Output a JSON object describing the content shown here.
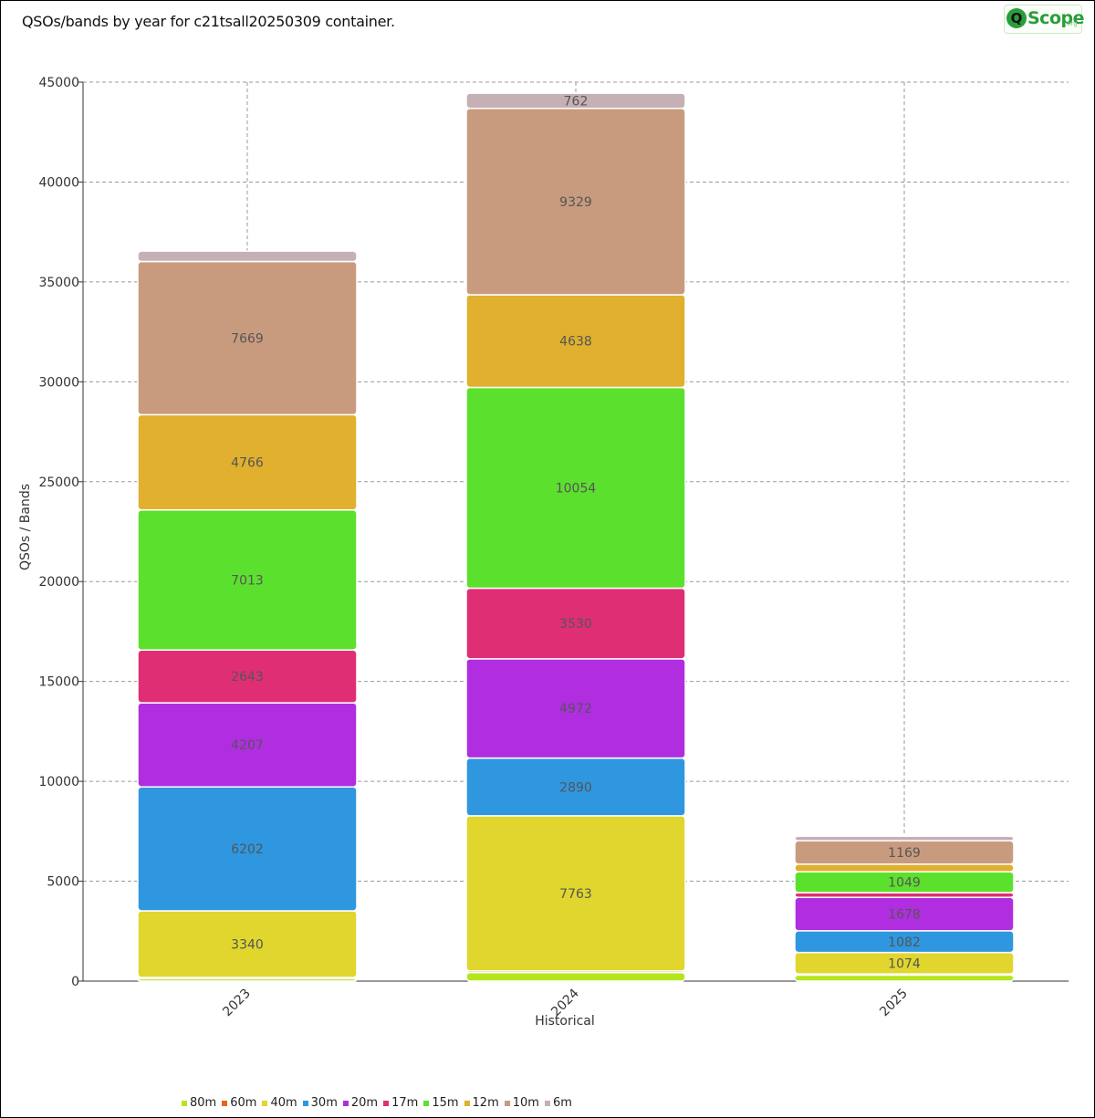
{
  "title": "QSOs/bands by year for c21tsall20250309 container.",
  "logo": {
    "q": "Q",
    "text": "Scope",
    "suffix": ".org"
  },
  "chart_data": {
    "type": "bar",
    "stacked": true,
    "xlabel": "Historical",
    "ylabel": "QSOs / Bands",
    "ylim": [
      0,
      45000
    ],
    "yticks": [
      0,
      5000,
      10000,
      15000,
      20000,
      25000,
      30000,
      35000,
      40000,
      45000
    ],
    "grid": true,
    "legend_position": "bottom",
    "categories": [
      "2023",
      "2024",
      "2025"
    ],
    "series": [
      {
        "name": "80m",
        "color": "#b5e61d",
        "values": [
          120,
          430,
          300
        ]
      },
      {
        "name": "60m",
        "color": "#e8641b",
        "values": [
          60,
          80,
          60
        ]
      },
      {
        "name": "40m",
        "color": "#e0d62e",
        "values": [
          3340,
          7763,
          1074
        ]
      },
      {
        "name": "30m",
        "color": "#2e97e0",
        "values": [
          6202,
          2890,
          1082
        ]
      },
      {
        "name": "20m",
        "color": "#b02ee0",
        "values": [
          4207,
          4972,
          1678
        ]
      },
      {
        "name": "17m",
        "color": "#e02e75",
        "values": [
          2643,
          3530,
          230
        ]
      },
      {
        "name": "15m",
        "color": "#5ce02e",
        "values": [
          7013,
          10054,
          1049
        ]
      },
      {
        "name": "12m",
        "color": "#e0b02e",
        "values": [
          4766,
          4638,
          380
        ]
      },
      {
        "name": "10m",
        "color": "#c99b7e",
        "values": [
          7669,
          9329,
          1169
        ]
      },
      {
        "name": "6m",
        "color": "#c5b0b5",
        "values": [
          520,
          762,
          230
        ]
      }
    ],
    "label_min": 1000
  }
}
